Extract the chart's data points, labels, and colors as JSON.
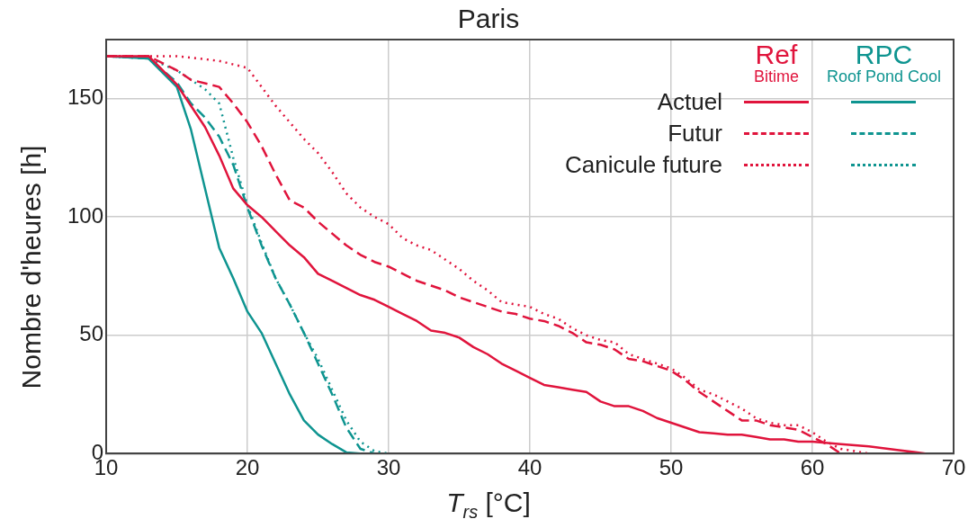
{
  "chart_data": {
    "type": "line",
    "title": "Paris",
    "xlabel": "T$_{rs}$ [°C]",
    "ylabel": "Nombre d'heures [h]",
    "xlim": [
      10,
      70
    ],
    "xticks": [
      10,
      20,
      30,
      40,
      50,
      60,
      70
    ],
    "ylim": [
      0,
      175
    ],
    "yticks": [
      0,
      50,
      100,
      150
    ],
    "grid": true,
    "legend": "top right",
    "marker": "none",
    "annotations": [
      "Ref",
      "Bitime",
      "RPC",
      "Roof Pond Cool"
    ],
    "series": [
      {
        "name": "Actuel",
        "color": "#e0143c",
        "line_style": "solid",
        "x": [
          10,
          13,
          15,
          17,
          18,
          19,
          20,
          21,
          22,
          23,
          24,
          25,
          26,
          27,
          28,
          29,
          30,
          31,
          32,
          33,
          34,
          35,
          36,
          37,
          38,
          39,
          40,
          41,
          42,
          43,
          44,
          45,
          46,
          47,
          48,
          49,
          50,
          51,
          52,
          53,
          54,
          55,
          56,
          57,
          58,
          59,
          60,
          62,
          64,
          66,
          68
        ],
        "values": [
          168,
          168,
          156,
          138,
          126,
          112,
          105,
          100,
          94,
          88,
          83,
          76,
          73,
          70,
          67,
          65,
          62,
          59,
          56,
          52,
          51,
          49,
          45,
          42,
          38,
          35,
          32,
          29,
          28,
          27,
          26,
          22,
          20,
          20,
          18,
          15,
          13,
          11,
          9,
          8.5,
          8,
          8,
          7,
          6,
          6,
          5,
          5,
          4,
          3,
          1.5,
          0
        ]
      },
      {
        "name": "Futur",
        "color": "#e0143c",
        "line_style": "dashed",
        "x": [
          10,
          13,
          15,
          16,
          18,
          19,
          20,
          21,
          22,
          23,
          24,
          25,
          26,
          27,
          28,
          29,
          30,
          31,
          32,
          33,
          34,
          35,
          36,
          37,
          38,
          39,
          40,
          41,
          42,
          43,
          44,
          45,
          46,
          47,
          48,
          49,
          50,
          51,
          52,
          53,
          54,
          55,
          56,
          57,
          58,
          59,
          60,
          61,
          62
        ],
        "values": [
          168,
          168,
          162,
          158,
          155,
          148,
          140,
          130,
          118,
          107,
          104,
          98,
          93,
          88,
          84,
          81,
          79,
          76,
          73,
          71,
          69,
          66,
          64,
          62,
          60,
          59,
          57,
          56,
          54,
          51,
          47,
          46,
          44,
          40,
          39,
          37,
          35,
          31,
          26,
          22,
          18,
          14,
          14,
          12,
          11,
          10,
          7,
          4,
          0
        ]
      },
      {
        "name": "Canicule future",
        "color": "#e0143c",
        "line_style": "dotted",
        "x": [
          10,
          15,
          18,
          20,
          21,
          22,
          23,
          24,
          25,
          26,
          27,
          28,
          29,
          30,
          31,
          32,
          33,
          34,
          35,
          36,
          37,
          38,
          39,
          40,
          41,
          42,
          43,
          44,
          45,
          46,
          47,
          48,
          49,
          50,
          51,
          52,
          53,
          54,
          55,
          56,
          57,
          58,
          59,
          60,
          61,
          62,
          63,
          64
        ],
        "values": [
          168,
          168,
          166,
          163,
          155,
          147,
          140,
          133,
          127,
          119,
          110,
          104,
          100,
          97,
          91,
          88,
          86,
          82,
          78,
          73,
          69,
          64,
          63,
          62,
          59,
          57,
          53,
          50,
          48,
          47,
          42,
          40,
          38,
          36,
          32,
          27,
          25,
          22,
          19,
          15,
          13,
          12,
          12,
          9,
          5,
          2,
          1,
          0
        ]
      },
      {
        "color": "#0e9490",
        "line_style": "solid",
        "x": [
          10,
          13,
          15,
          16,
          17,
          18,
          19,
          20,
          21,
          22,
          23,
          24,
          25,
          26,
          27,
          28
        ],
        "values": [
          168,
          167,
          155,
          137,
          112,
          87,
          74,
          60,
          51,
          38,
          25,
          14,
          8,
          4,
          0.5,
          0
        ]
      },
      {
        "color": "#0e9490",
        "line_style": "dashed",
        "x": [
          10,
          13,
          15,
          16,
          17,
          18,
          19,
          20,
          21,
          22,
          23,
          24,
          25,
          26,
          27,
          28,
          29
        ],
        "values": [
          168,
          167,
          157,
          148,
          142,
          134,
          122,
          104,
          88,
          74,
          63,
          51,
          38,
          25,
          11,
          2,
          0
        ]
      },
      {
        "color": "#0e9490",
        "line_style": "dotted",
        "x": [
          10,
          13,
          15,
          16,
          17,
          18,
          19,
          20,
          21,
          22,
          23,
          24,
          25,
          26,
          27,
          28,
          29,
          30
        ],
        "values": [
          168,
          167,
          162,
          158,
          154,
          148,
          125,
          105,
          89,
          74,
          63,
          51,
          40,
          27,
          14,
          5,
          1,
          0
        ]
      }
    ]
  }
}
